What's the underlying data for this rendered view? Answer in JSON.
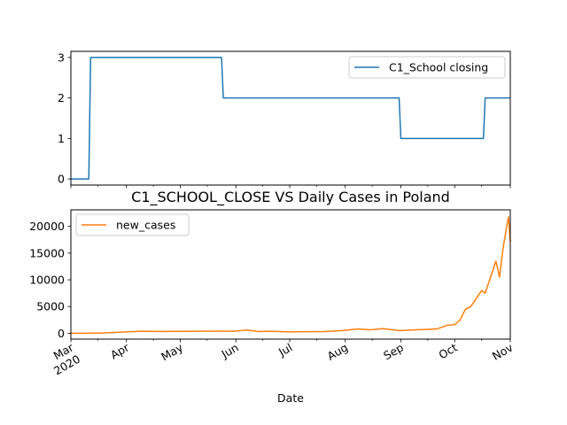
{
  "chart_data": [
    {
      "type": "line",
      "title": "",
      "xlabel": "",
      "ylabel": "",
      "ylim": [
        -0.15,
        3.15
      ],
      "yticks": [
        0,
        1,
        2,
        3
      ],
      "legend": "top-right",
      "grid": false,
      "series": [
        {
          "name": "C1_School closing",
          "color": "#1f77b4",
          "x": [
            "2020-03-01",
            "2020-03-11",
            "2020-03-12",
            "2020-05-24",
            "2020-05-25",
            "2020-08-31",
            "2020-09-01",
            "2020-10-17",
            "2020-10-18",
            "2020-11-01"
          ],
          "values": [
            0,
            0,
            3,
            3,
            2,
            2,
            1,
            1,
            2,
            2
          ]
        }
      ]
    },
    {
      "type": "line",
      "title": "C1_SCHOOL_CLOSE VS Daily Cases in Poland",
      "xlabel": "Date",
      "ylabel": "",
      "ylim": [
        -1100,
        23100
      ],
      "yticks": [
        0,
        5000,
        10000,
        15000,
        20000
      ],
      "legend": "top-left",
      "grid": false,
      "series": [
        {
          "name": "new_cases",
          "color": "#ff7f0e",
          "x": [
            "2020-03-01",
            "2020-03-10",
            "2020-03-20",
            "2020-03-31",
            "2020-04-10",
            "2020-04-20",
            "2020-04-30",
            "2020-05-10",
            "2020-05-20",
            "2020-05-31",
            "2020-06-07",
            "2020-06-14",
            "2020-06-21",
            "2020-06-30",
            "2020-07-10",
            "2020-07-20",
            "2020-07-31",
            "2020-08-08",
            "2020-08-15",
            "2020-08-22",
            "2020-08-31",
            "2020-09-07",
            "2020-09-14",
            "2020-09-21",
            "2020-09-27",
            "2020-10-01",
            "2020-10-04",
            "2020-10-07",
            "2020-10-10",
            "2020-10-13",
            "2020-10-16",
            "2020-10-18",
            "2020-10-20",
            "2020-10-22",
            "2020-10-24",
            "2020-10-26",
            "2020-10-28",
            "2020-10-30",
            "2020-10-31",
            "2020-11-01"
          ],
          "values": [
            0,
            5,
            50,
            250,
            380,
            330,
            350,
            380,
            400,
            370,
            600,
            310,
            380,
            250,
            280,
            300,
            520,
            800,
            650,
            870,
            500,
            600,
            700,
            800,
            1500,
            1600,
            2500,
            4500,
            5000,
            6500,
            8000,
            7500,
            9500,
            11500,
            13500,
            10500,
            16000,
            20000,
            21800,
            17100
          ]
        }
      ]
    }
  ],
  "x_ticks": {
    "major": [
      "Mar\n2020",
      "Apr",
      "May",
      "Jun",
      "Jul",
      "Aug",
      "Sep",
      "Oct",
      "Nov"
    ],
    "major_dates": [
      "2020-03-01",
      "2020-04-01",
      "2020-05-01",
      "2020-06-01",
      "2020-07-01",
      "2020-08-01",
      "2020-09-01",
      "2020-10-01",
      "2020-11-01"
    ]
  },
  "x_range": [
    "2020-03-01",
    "2020-11-01"
  ]
}
